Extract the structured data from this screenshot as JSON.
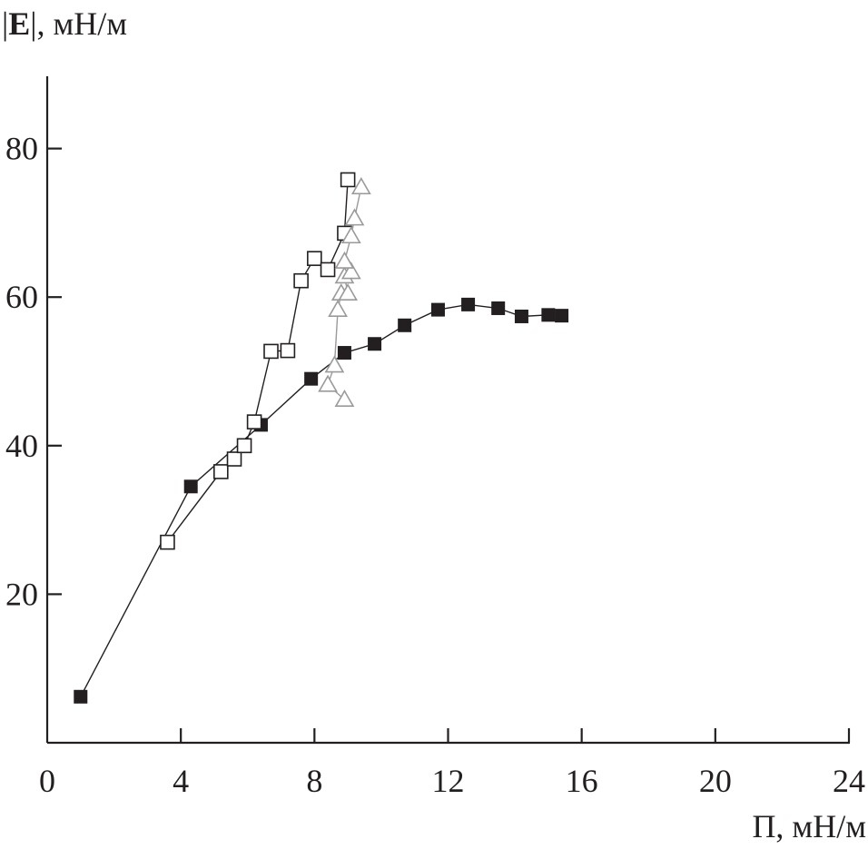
{
  "chart_data": {
    "type": "scatter",
    "ylabel_parts": {
      "bar_open": "|",
      "symbol": "E",
      "bar_close": "|",
      "unit": ", мН/м"
    },
    "xlabel": "П, мН/м",
    "xlim": [
      0,
      24
    ],
    "ylim": [
      0,
      90
    ],
    "x_ticks": [
      "0",
      "4",
      "8",
      "12",
      "16",
      "20",
      "24"
    ],
    "y_ticks": [
      "20",
      "40",
      "60",
      "80"
    ],
    "grid": false,
    "legend": "none",
    "series": [
      {
        "marker": "filled-square",
        "color": "#231f20",
        "connected": true,
        "points": [
          {
            "x": 1.0,
            "y": 6.2
          },
          {
            "x": 4.3,
            "y": 34.5
          },
          {
            "x": 6.4,
            "y": 42.8
          },
          {
            "x": 7.9,
            "y": 49.0
          },
          {
            "x": 8.9,
            "y": 52.5
          },
          {
            "x": 9.8,
            "y": 53.7
          },
          {
            "x": 10.7,
            "y": 56.2
          },
          {
            "x": 11.7,
            "y": 58.3
          },
          {
            "x": 12.6,
            "y": 59.0
          },
          {
            "x": 13.5,
            "y": 58.5
          },
          {
            "x": 14.2,
            "y": 57.4
          },
          {
            "x": 15.0,
            "y": 57.6
          },
          {
            "x": 15.4,
            "y": 57.5
          }
        ]
      },
      {
        "marker": "open-square",
        "color": "#231f20",
        "connected": true,
        "points": [
          {
            "x": 3.6,
            "y": 27.0
          },
          {
            "x": 5.2,
            "y": 36.5
          },
          {
            "x": 5.6,
            "y": 38.2
          },
          {
            "x": 5.9,
            "y": 40.0
          },
          {
            "x": 6.2,
            "y": 43.2
          },
          {
            "x": 6.7,
            "y": 52.7
          },
          {
            "x": 7.2,
            "y": 52.8
          },
          {
            "x": 7.6,
            "y": 62.2
          },
          {
            "x": 8.0,
            "y": 65.2
          },
          {
            "x": 8.4,
            "y": 63.7
          },
          {
            "x": 8.9,
            "y": 68.6
          },
          {
            "x": 9.0,
            "y": 75.8
          }
        ]
      },
      {
        "marker": "open-triangle",
        "color": "#9a9a9a",
        "connected": true,
        "points": [
          {
            "x": 8.9,
            "y": 46.2
          },
          {
            "x": 8.4,
            "y": 48.2
          },
          {
            "x": 8.6,
            "y": 50.8
          },
          {
            "x": 8.7,
            "y": 58.3
          },
          {
            "x": 8.8,
            "y": 60.5
          },
          {
            "x": 9.0,
            "y": 60.5
          },
          {
            "x": 8.9,
            "y": 62.8
          },
          {
            "x": 9.1,
            "y": 63.4
          },
          {
            "x": 8.9,
            "y": 64.8
          },
          {
            "x": 9.1,
            "y": 68.2
          },
          {
            "x": 9.2,
            "y": 70.6
          },
          {
            "x": 9.4,
            "y": 74.8
          }
        ]
      }
    ]
  }
}
